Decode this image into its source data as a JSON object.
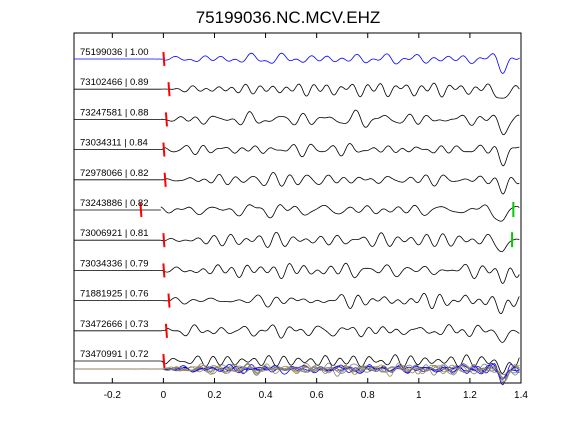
{
  "chart_data": {
    "type": "line",
    "title": "75199036.NC.MCV.EHZ",
    "xlabel": "",
    "ylabel": "",
    "xlim": [
      -0.35,
      1.4
    ],
    "x_ticks": [
      "-0.2",
      "0",
      "0.2",
      "0.4",
      "0.6",
      "0.8",
      "1",
      "1.2",
      "1.4"
    ],
    "x_tick_values": [
      -0.2,
      0,
      0.2,
      0.4,
      0.6,
      0.8,
      1.0,
      1.2,
      1.4
    ],
    "grid": false,
    "series": [
      {
        "label": "75199036 | 1.00",
        "pick_time": 0.0,
        "color": "#0000ff"
      },
      {
        "label": "73102466 | 0.89",
        "pick_time": 0.02,
        "color": "#000000"
      },
      {
        "label": "73247581 | 0.88",
        "pick_time": 0.01,
        "color": "#000000"
      },
      {
        "label": "73034311 | 0.84",
        "pick_time": 0.0,
        "color": "#000000"
      },
      {
        "label": "72978066 | 0.82",
        "pick_time": 0.005,
        "color": "#000000"
      },
      {
        "label": "73243886 | 0.82",
        "pick_time": -0.09,
        "color": "#000000",
        "s_pick_time": 1.37
      },
      {
        "label": "73006921 | 0.81",
        "pick_time": 0.0,
        "color": "#000000",
        "s_pick_time": 1.365
      },
      {
        "label": "73034336 | 0.79",
        "pick_time": 0.0,
        "color": "#000000"
      },
      {
        "label": "71881925 | 0.76",
        "pick_time": 0.02,
        "color": "#000000"
      },
      {
        "label": "73472666 | 0.73",
        "pick_time": 0.01,
        "color": "#000000"
      },
      {
        "label": "73470991 | 0.72",
        "pick_time": 0.0,
        "color": "#000000"
      }
    ],
    "stack": {
      "name": "stacked-traces",
      "colors": [
        "#0000ff",
        "#808080",
        "#a08a50"
      ]
    },
    "p_pick_color": "#ff0000",
    "s_pick_color": "#00cc00"
  }
}
